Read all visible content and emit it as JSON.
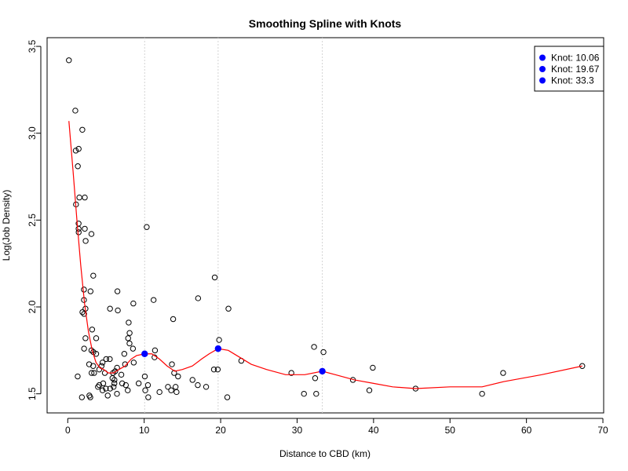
{
  "chart_data": {
    "type": "scatter",
    "title": "Smoothing Spline with Knots",
    "xlabel": "Distance to CBD (km)",
    "ylabel": "Log(Job Density)",
    "xlim": [
      -2.7,
      70.1
    ],
    "ylim": [
      1.39,
      3.55
    ],
    "x_ticks": [
      0,
      10,
      20,
      30,
      40,
      50,
      60,
      70
    ],
    "x_tick_labels": [
      "0",
      "10",
      "20",
      "30",
      "40",
      "50",
      "60",
      "70"
    ],
    "y_ticks": [
      1.5,
      2.0,
      2.5,
      3.0,
      3.5
    ],
    "y_tick_labels": [
      "1.5",
      "2.0",
      "2.5",
      "3.0",
      "3.5"
    ],
    "grid": false,
    "legend": {
      "position": "top-right",
      "entries": [
        {
          "label": "Knot: 10.06",
          "color": "#0000ff"
        },
        {
          "label": "Knot: 19.67",
          "color": "#0000ff"
        },
        {
          "label": "Knot: 33.3",
          "color": "#0000ff"
        }
      ]
    },
    "vlines": [
      10.06,
      19.67,
      33.3
    ],
    "points": [
      [
        0.15,
        3.42
      ],
      [
        0.99,
        3.13
      ],
      [
        1.05,
        2.9
      ],
      [
        1.43,
        2.91
      ],
      [
        1.91,
        3.02
      ],
      [
        1.32,
        2.81
      ],
      [
        1.08,
        2.59
      ],
      [
        1.52,
        2.63
      ],
      [
        2.23,
        2.63
      ],
      [
        1.42,
        2.48
      ],
      [
        1.42,
        2.45
      ],
      [
        1.43,
        2.43
      ],
      [
        2.23,
        2.45
      ],
      [
        2.34,
        2.38
      ],
      [
        3.1,
        2.42
      ],
      [
        2.98,
        2.09
      ],
      [
        3.34,
        2.18
      ],
      [
        2.12,
        2.1
      ],
      [
        2.12,
        2.04
      ],
      [
        2.32,
        1.99
      ],
      [
        1.92,
        1.97
      ],
      [
        2.14,
        1.96
      ],
      [
        3.19,
        1.87
      ],
      [
        2.32,
        1.82
      ],
      [
        3.72,
        1.82
      ],
      [
        2.14,
        1.76
      ],
      [
        3.1,
        1.75
      ],
      [
        3.35,
        1.74
      ],
      [
        3.72,
        1.73
      ],
      [
        2.8,
        1.67
      ],
      [
        3.33,
        1.66
      ],
      [
        3.12,
        1.62
      ],
      [
        3.45,
        1.62
      ],
      [
        4.12,
        1.64
      ],
      [
        4.42,
        1.66
      ],
      [
        5.03,
        1.7
      ],
      [
        4.55,
        1.68
      ],
      [
        4.85,
        1.62
      ],
      [
        4.12,
        1.55
      ],
      [
        4.64,
        1.56
      ],
      [
        5.5,
        1.7
      ],
      [
        5.85,
        1.59
      ],
      [
        5.93,
        1.62
      ],
      [
        6.11,
        1.58
      ],
      [
        6.21,
        1.63
      ],
      [
        6.45,
        1.65
      ],
      [
        6.0,
        1.54
      ],
      [
        5.55,
        1.53
      ],
      [
        5.23,
        1.49
      ],
      [
        4.98,
        1.53
      ],
      [
        4.55,
        1.52
      ],
      [
        3.95,
        1.54
      ],
      [
        2.83,
        1.49
      ],
      [
        2.95,
        1.48
      ],
      [
        1.85,
        1.48
      ],
      [
        1.3,
        1.6
      ],
      [
        5.53,
        1.99
      ],
      [
        6.5,
        2.09
      ],
      [
        6.55,
        1.98
      ],
      [
        6.1,
        1.56
      ],
      [
        6.44,
        1.5
      ],
      [
        7.01,
        1.61
      ],
      [
        7.12,
        1.56
      ],
      [
        7.4,
        1.73
      ],
      [
        7.5,
        1.67
      ],
      [
        7.6,
        1.55
      ],
      [
        7.85,
        1.52
      ],
      [
        7.9,
        1.82
      ],
      [
        7.97,
        1.91
      ],
      [
        8.09,
        1.85
      ],
      [
        8.08,
        1.79
      ],
      [
        8.53,
        1.76
      ],
      [
        8.63,
        1.68
      ],
      [
        8.58,
        2.02
      ],
      [
        9.28,
        1.56
      ],
      [
        10.08,
        1.6
      ],
      [
        10.14,
        1.52
      ],
      [
        10.49,
        1.55
      ],
      [
        10.53,
        1.48
      ],
      [
        10.33,
        2.46
      ],
      [
        11.23,
        2.04
      ],
      [
        11.35,
        1.71
      ],
      [
        11.41,
        1.75
      ],
      [
        12.0,
        1.51
      ],
      [
        13.11,
        1.54
      ],
      [
        13.53,
        1.52
      ],
      [
        13.63,
        1.67
      ],
      [
        13.79,
        1.93
      ],
      [
        13.92,
        1.62
      ],
      [
        14.11,
        1.54
      ],
      [
        14.23,
        1.51
      ],
      [
        14.43,
        1.6
      ],
      [
        16.32,
        1.58
      ],
      [
        17.01,
        1.55
      ],
      [
        17.05,
        2.05
      ],
      [
        18.1,
        1.54
      ],
      [
        19.12,
        1.64
      ],
      [
        19.23,
        2.17
      ],
      [
        19.62,
        1.64
      ],
      [
        19.8,
        1.81
      ],
      [
        20.87,
        1.48
      ],
      [
        21.02,
        1.99
      ],
      [
        22.7,
        1.69
      ],
      [
        29.25,
        1.62
      ],
      [
        30.9,
        1.5
      ],
      [
        32.22,
        1.77
      ],
      [
        32.36,
        1.59
      ],
      [
        32.5,
        1.5
      ],
      [
        33.45,
        1.74
      ],
      [
        37.3,
        1.58
      ],
      [
        39.45,
        1.52
      ],
      [
        39.9,
        1.65
      ],
      [
        45.5,
        1.53
      ],
      [
        54.2,
        1.5
      ],
      [
        56.95,
        1.62
      ],
      [
        67.3,
        1.66
      ]
    ],
    "spline": [
      [
        0.15,
        3.07
      ],
      [
        0.7,
        2.78
      ],
      [
        1.2,
        2.5
      ],
      [
        1.7,
        2.24
      ],
      [
        2.2,
        2.02
      ],
      [
        2.7,
        1.86
      ],
      [
        3.2,
        1.75
      ],
      [
        3.7,
        1.68
      ],
      [
        4.2,
        1.65
      ],
      [
        4.7,
        1.64
      ],
      [
        5.3,
        1.62
      ],
      [
        6.0,
        1.62
      ],
      [
        6.7,
        1.64
      ],
      [
        7.5,
        1.66
      ],
      [
        8.3,
        1.7
      ],
      [
        9.0,
        1.72
      ],
      [
        10.06,
        1.73
      ],
      [
        11.0,
        1.73
      ],
      [
        12.0,
        1.7
      ],
      [
        13.0,
        1.66
      ],
      [
        14.0,
        1.63
      ],
      [
        15.0,
        1.64
      ],
      [
        16.3,
        1.66
      ],
      [
        17.5,
        1.7
      ],
      [
        18.5,
        1.73
      ],
      [
        19.67,
        1.76
      ],
      [
        21.0,
        1.75
      ],
      [
        22.5,
        1.71
      ],
      [
        24.0,
        1.67
      ],
      [
        26.0,
        1.64
      ],
      [
        28.5,
        1.61
      ],
      [
        31.0,
        1.61
      ],
      [
        33.3,
        1.63
      ],
      [
        35.0,
        1.61
      ],
      [
        37.5,
        1.58
      ],
      [
        40.0,
        1.56
      ],
      [
        42.5,
        1.54
      ],
      [
        45.5,
        1.53
      ],
      [
        50.0,
        1.54
      ],
      [
        54.2,
        1.54
      ],
      [
        57.0,
        1.57
      ],
      [
        62.0,
        1.61
      ],
      [
        67.3,
        1.66
      ]
    ],
    "knots": [
      [
        10.06,
        1.73
      ],
      [
        19.67,
        1.76
      ],
      [
        33.3,
        1.63
      ]
    ],
    "colors": {
      "points": "#000000",
      "spline": "#ff0000",
      "knots": "#0000ff",
      "vlines": "#d3d3d3"
    }
  }
}
